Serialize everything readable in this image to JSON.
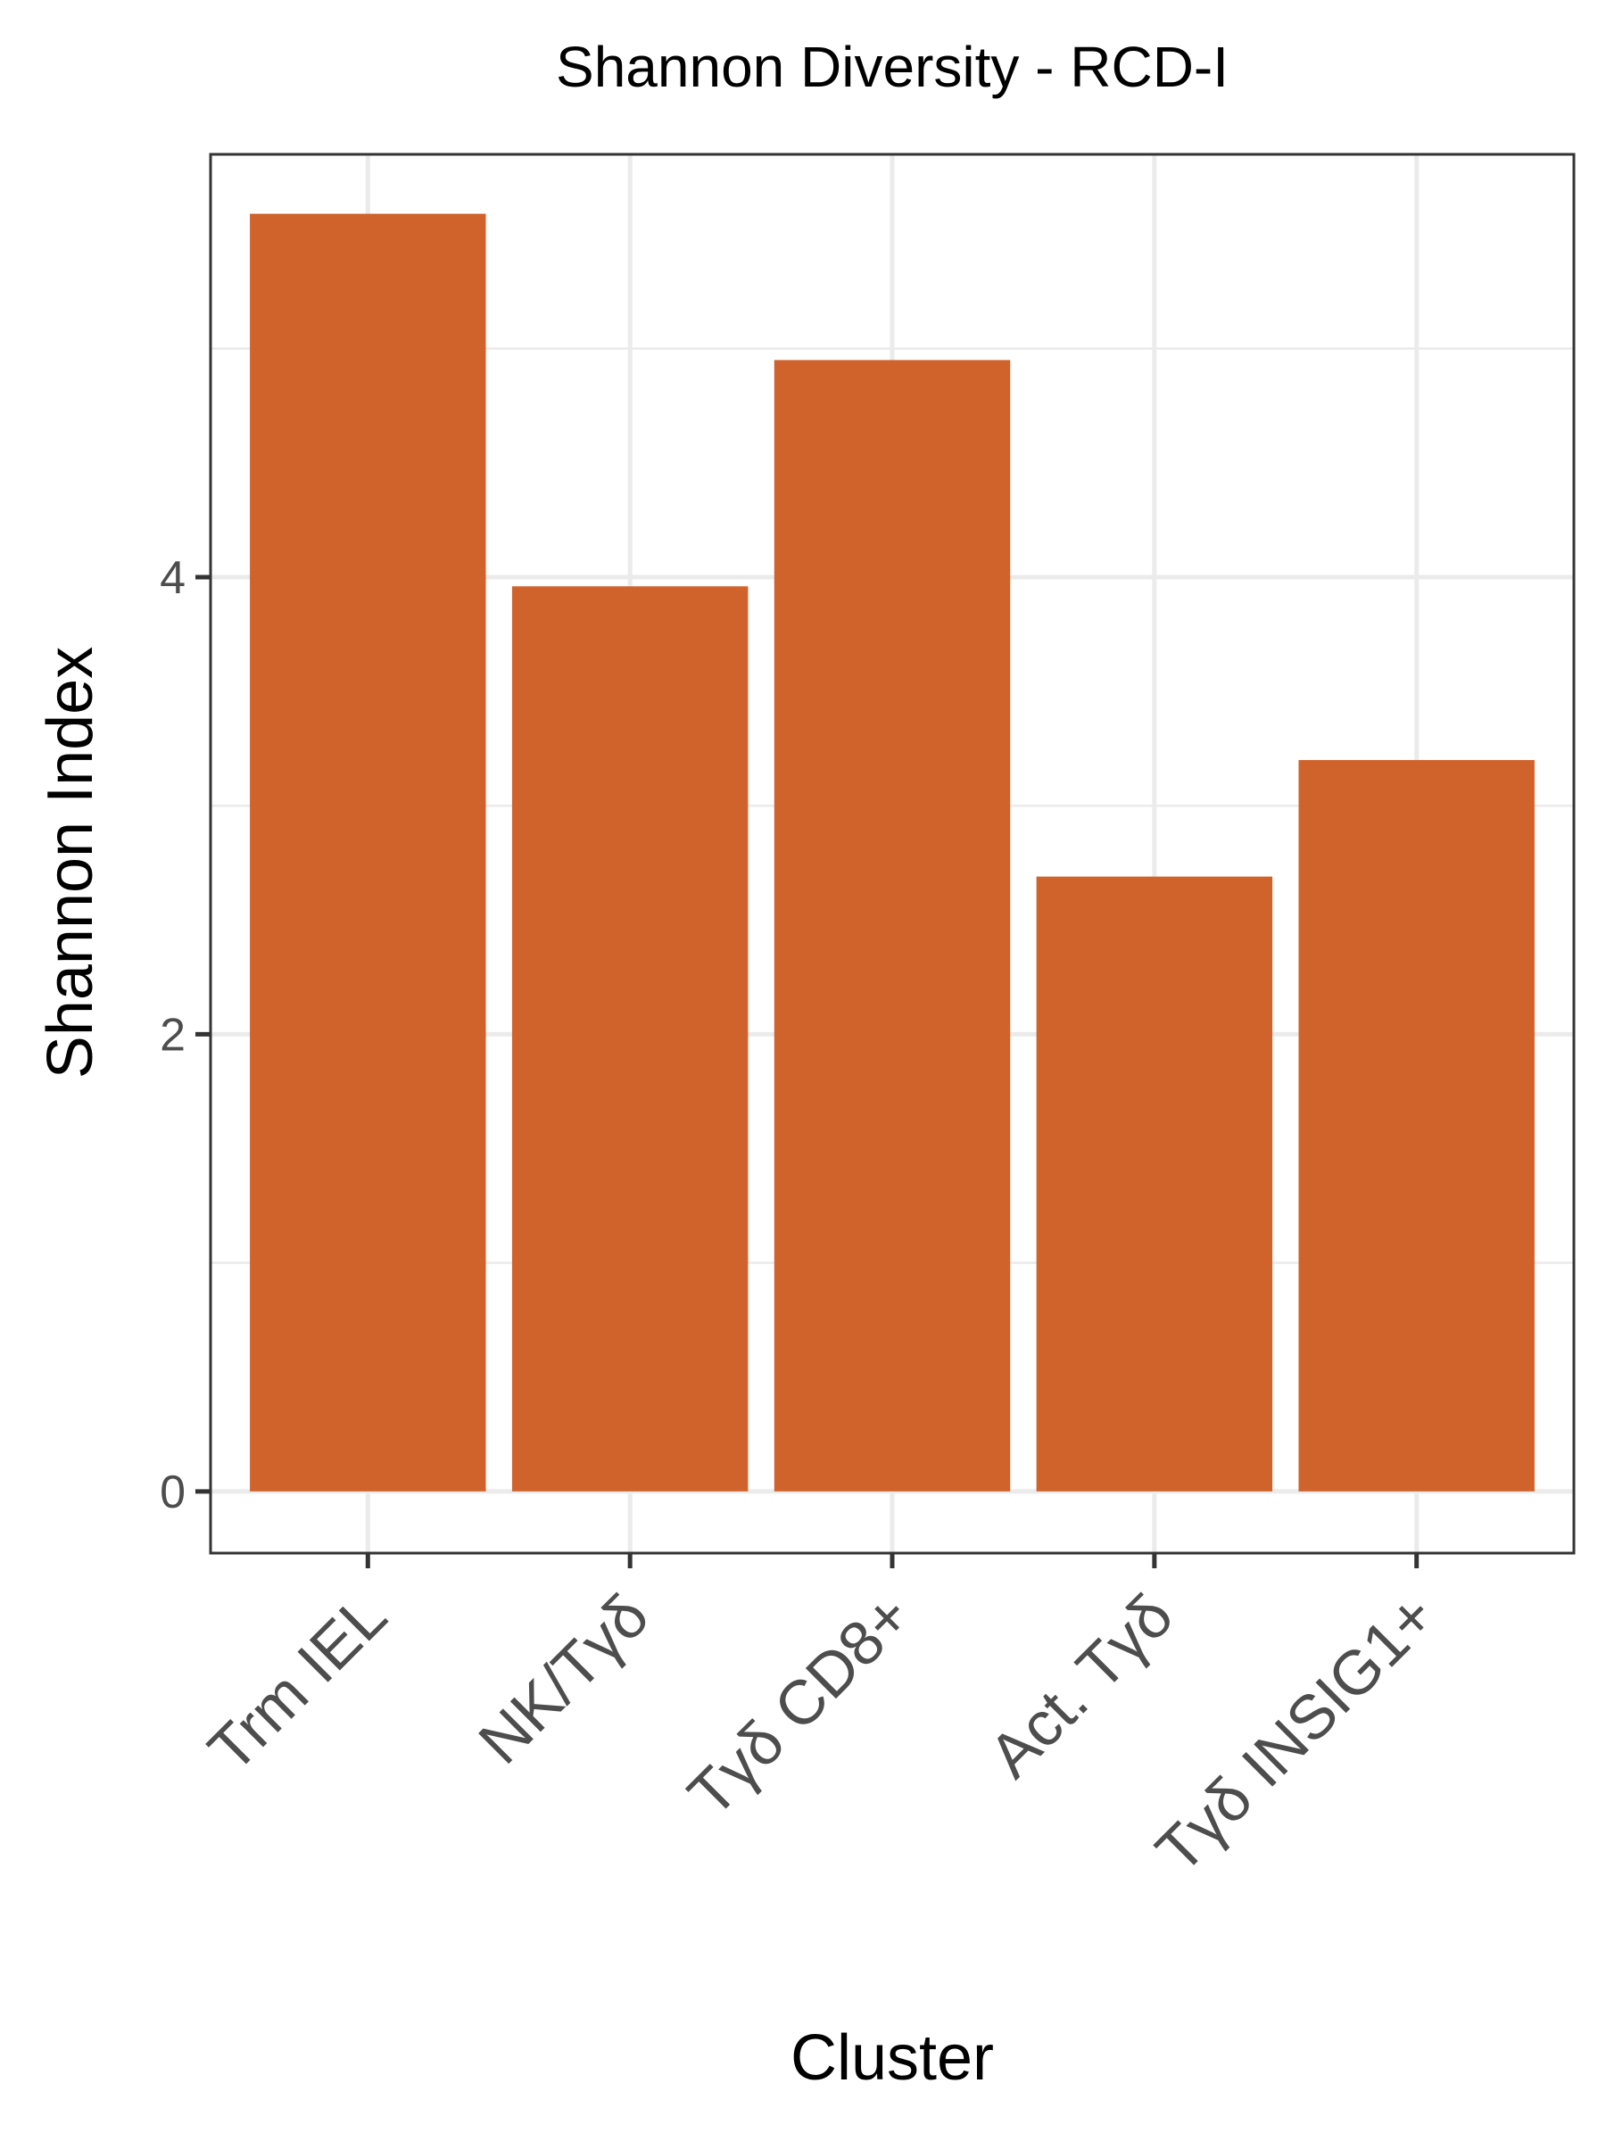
{
  "chart_data": {
    "type": "bar",
    "title": "Shannon Diversity -  RCD-I",
    "xlabel": "Cluster",
    "ylabel": "Shannon Index",
    "categories": [
      "Trm IEL",
      "NK/Tγδ",
      "Tγδ CD8+",
      "Act. Tγδ",
      "Tγδ INSIG1+"
    ],
    "values": [
      5.59,
      3.96,
      4.95,
      2.69,
      3.2
    ],
    "ylim": [
      -0.27,
      5.85
    ],
    "yticks": [
      0,
      2,
      4
    ],
    "grid": true,
    "bar_color": "#D0632C",
    "grid_color": "#EBEBEB",
    "panel_border_color": "#333333"
  }
}
